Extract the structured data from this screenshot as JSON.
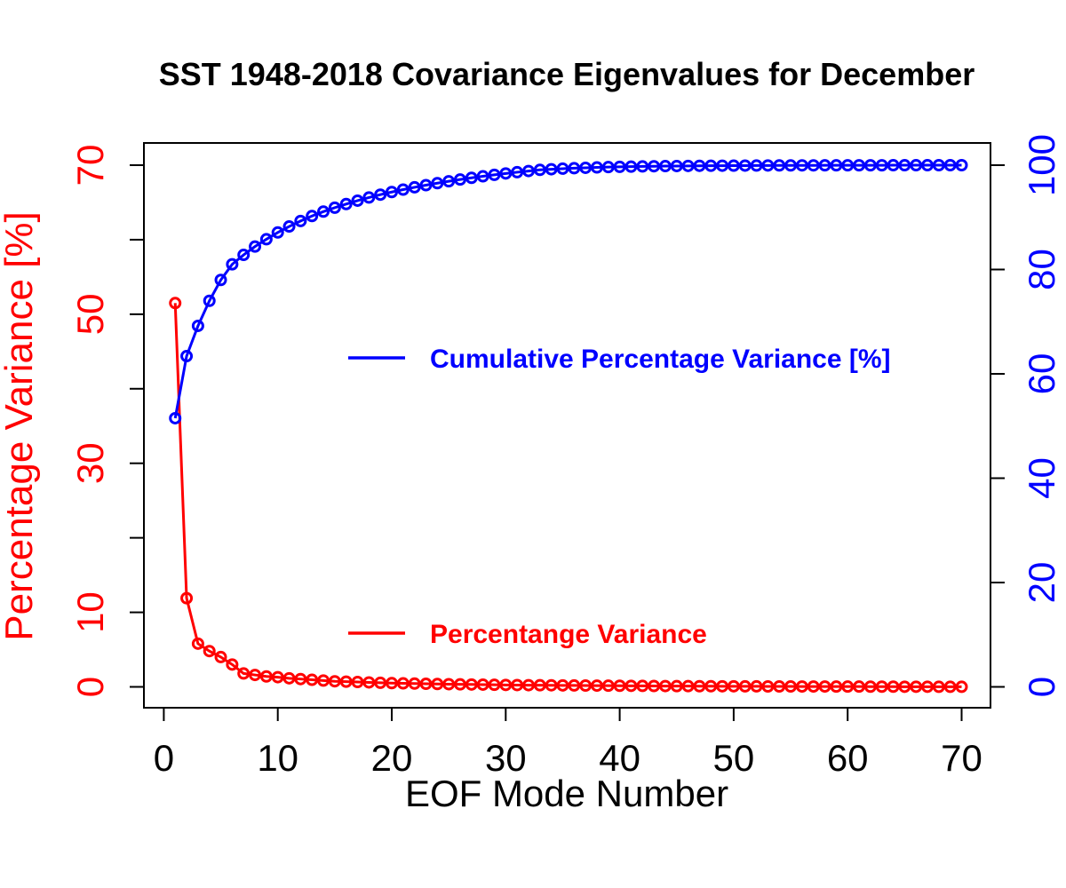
{
  "chart_data": {
    "type": "line",
    "title": "SST 1948-2018 Covariance Eigenvalues for December",
    "xlabel": "EOF Mode Number",
    "ylabel_left": "Percentage Variance [%]",
    "ylabel_right": "",
    "xlim": [
      1,
      70
    ],
    "ylim_left": [
      0,
      70
    ],
    "ylim_right": [
      0,
      100
    ],
    "x_ticks": [
      "0",
      "10",
      "20",
      "30",
      "40",
      "50",
      "60",
      "70"
    ],
    "y_left_ticks": [
      "0",
      "10",
      "30",
      "50",
      "70"
    ],
    "y_right_ticks": [
      "0",
      "20",
      "40",
      "60",
      "80",
      "100"
    ],
    "grid": false,
    "colors": {
      "percentage": "#ff0000",
      "cumulative": "#0000ff",
      "axis": "#000000"
    },
    "series": [
      {
        "name": "Percentange Variance",
        "axis": "left",
        "color": "#ff0000",
        "values": [
          51.5,
          11.9,
          5.8,
          4.8,
          4.0,
          3.0,
          1.8,
          1.6,
          1.4,
          1.3,
          1.15,
          1.05,
          0.95,
          0.85,
          0.75,
          0.7,
          0.65,
          0.6,
          0.55,
          0.5,
          0.47,
          0.44,
          0.41,
          0.38,
          0.36,
          0.34,
          0.32,
          0.3,
          0.28,
          0.26,
          0.24,
          0.23,
          0.22,
          0.21,
          0.2,
          0.19,
          0.18,
          0.17,
          0.16,
          0.15,
          0.14,
          0.13,
          0.12,
          0.11,
          0.1,
          0.1,
          0.09,
          0.09,
          0.08,
          0.08,
          0.07,
          0.07,
          0.06,
          0.06,
          0.06,
          0.05,
          0.05,
          0.05,
          0.04,
          0.04,
          0.04,
          0.03,
          0.03,
          0.03,
          0.02,
          0.02,
          0.02,
          0.01,
          0.01,
          0.01
        ]
      },
      {
        "name": "Cumulative Percentage Variance [%]",
        "axis": "right",
        "color": "#0000ff",
        "values": [
          51.5,
          63.4,
          69.2,
          74.0,
          78.0,
          81.0,
          82.8,
          84.4,
          85.8,
          87.1,
          88.25,
          89.3,
          90.25,
          91.1,
          91.85,
          92.55,
          93.2,
          93.8,
          94.35,
          94.85,
          95.32,
          95.76,
          96.17,
          96.55,
          96.91,
          97.25,
          97.57,
          97.87,
          98.15,
          98.41,
          98.65,
          98.88,
          99.1,
          99.22,
          99.33,
          99.42,
          99.5,
          99.57,
          99.63,
          99.68,
          99.72,
          99.76,
          99.79,
          99.82,
          99.84,
          99.86,
          99.88,
          99.89,
          99.9,
          99.91,
          99.92,
          99.93,
          99.94,
          99.95,
          99.95,
          99.96,
          99.96,
          99.97,
          99.97,
          99.97,
          99.98,
          99.98,
          99.98,
          99.99,
          99.99,
          99.99,
          99.99,
          100.0,
          100.0,
          100.0
        ]
      }
    ],
    "legend": [
      {
        "label": "Cumulative Percentage Variance [%]",
        "color": "#0000ff"
      },
      {
        "label": "Percentange Variance",
        "color": "#ff0000"
      }
    ]
  }
}
